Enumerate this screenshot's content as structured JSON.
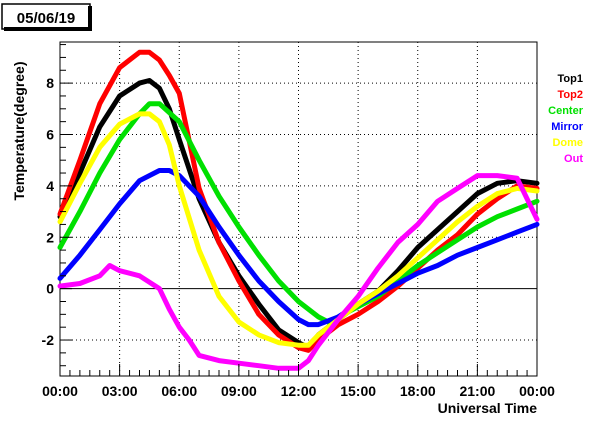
{
  "chart_data": {
    "type": "line",
    "title": "05/06/19",
    "xlabel": "Universal Time",
    "ylabel": "Temperature(degree)",
    "xlim": [
      0,
      24
    ],
    "ylim": [
      -3.4,
      9.6
    ],
    "grid": true,
    "legend_placement": "right",
    "x_tick_labels": [
      "00:00",
      "03:00",
      "06:00",
      "09:00",
      "12:00",
      "15:00",
      "18:00",
      "21:00",
      "00:00"
    ],
    "y_tick_labels": [
      "-2",
      "0",
      "2",
      "4",
      "6",
      "8"
    ],
    "y_tick_values": [
      -2,
      0,
      2,
      4,
      6,
      8
    ],
    "series": [
      {
        "name": "Top1",
        "color": "#000000",
        "x": [
          0,
          1,
          2,
          3,
          4,
          4.5,
          5,
          5.5,
          6,
          7,
          8,
          9,
          10,
          11,
          12,
          12.5,
          13,
          14,
          15,
          16,
          17,
          18,
          19,
          20,
          21,
          22,
          23,
          24
        ],
        "y": [
          2.8,
          4.5,
          6.3,
          7.5,
          8.0,
          8.1,
          7.8,
          7.0,
          5.8,
          3.5,
          1.8,
          0.5,
          -0.6,
          -1.6,
          -2.1,
          -2.3,
          -1.8,
          -1.2,
          -0.6,
          -0.1,
          0.7,
          1.6,
          2.3,
          3.0,
          3.7,
          4.1,
          4.2,
          4.1
        ]
      },
      {
        "name": "Top2",
        "color": "#ff0000",
        "x": [
          0,
          1,
          2,
          3,
          4,
          4.5,
          5,
          5.5,
          6,
          7,
          8,
          9,
          10,
          11,
          12,
          12.5,
          13,
          14,
          15,
          16,
          17,
          18,
          19,
          20,
          21,
          22,
          23,
          24
        ],
        "y": [
          2.9,
          5.0,
          7.2,
          8.6,
          9.2,
          9.2,
          8.9,
          8.3,
          7.6,
          3.9,
          1.8,
          0.3,
          -1.0,
          -1.8,
          -2.3,
          -2.4,
          -2.0,
          -1.4,
          -1.0,
          -0.5,
          0.1,
          0.8,
          1.5,
          2.1,
          2.9,
          3.5,
          4.0,
          3.9
        ]
      },
      {
        "name": "Center",
        "color": "#00e000",
        "x": [
          0,
          1,
          2,
          3,
          4,
          4.5,
          5,
          6,
          7,
          8,
          9,
          10,
          11,
          12,
          13,
          13.5,
          14,
          15,
          16,
          17,
          18,
          19,
          20,
          21,
          22,
          23,
          24
        ],
        "y": [
          1.6,
          3.0,
          4.5,
          5.8,
          6.8,
          7.2,
          7.2,
          6.5,
          5.0,
          3.6,
          2.4,
          1.3,
          0.3,
          -0.5,
          -1.1,
          -1.3,
          -1.1,
          -0.7,
          -0.3,
          0.3,
          0.9,
          1.4,
          1.9,
          2.4,
          2.8,
          3.1,
          3.4
        ]
      },
      {
        "name": "Mirror",
        "color": "#0000ff",
        "x": [
          0,
          1,
          2,
          3,
          4,
          5,
          5.5,
          6,
          7,
          8,
          9,
          10,
          11,
          12,
          12.5,
          13,
          14,
          15,
          16,
          17,
          18,
          19,
          20,
          21,
          22,
          23,
          24
        ],
        "y": [
          0.4,
          1.3,
          2.3,
          3.3,
          4.2,
          4.6,
          4.6,
          4.4,
          3.6,
          2.4,
          1.3,
          0.3,
          -0.5,
          -1.2,
          -1.4,
          -1.4,
          -1.1,
          -0.6,
          -0.2,
          0.2,
          0.6,
          0.9,
          1.3,
          1.6,
          1.9,
          2.2,
          2.5
        ]
      },
      {
        "name": "Dome",
        "color": "#ffff00",
        "x": [
          0,
          1,
          2,
          3,
          4,
          4.5,
          5,
          5.5,
          6,
          7,
          8,
          9,
          10,
          11,
          12,
          12.5,
          13,
          14,
          15,
          16,
          17,
          18,
          19,
          20,
          21,
          22,
          23,
          24
        ],
        "y": [
          2.6,
          4.1,
          5.5,
          6.4,
          6.8,
          6.8,
          6.5,
          5.6,
          4.0,
          1.5,
          -0.3,
          -1.3,
          -1.8,
          -2.1,
          -2.2,
          -2.2,
          -1.8,
          -1.2,
          -0.6,
          -0.1,
          0.5,
          1.2,
          1.9,
          2.6,
          3.2,
          3.7,
          3.9,
          3.8
        ]
      },
      {
        "name": "Out",
        "color": "#ff00ff",
        "x": [
          0,
          1,
          2,
          2.5,
          3,
          4,
          5,
          5.5,
          6,
          6.5,
          7,
          8,
          9,
          10,
          11,
          12,
          12.5,
          13,
          14,
          15,
          16,
          17,
          18,
          19,
          20,
          21,
          22,
          23,
          24
        ],
        "y": [
          0.1,
          0.2,
          0.5,
          0.9,
          0.7,
          0.5,
          0.0,
          -0.8,
          -1.5,
          -2.0,
          -2.6,
          -2.8,
          -2.9,
          -3.0,
          -3.1,
          -3.1,
          -2.8,
          -2.2,
          -1.2,
          -0.3,
          0.8,
          1.8,
          2.5,
          3.4,
          3.9,
          4.4,
          4.4,
          4.3,
          2.7
        ]
      }
    ]
  }
}
